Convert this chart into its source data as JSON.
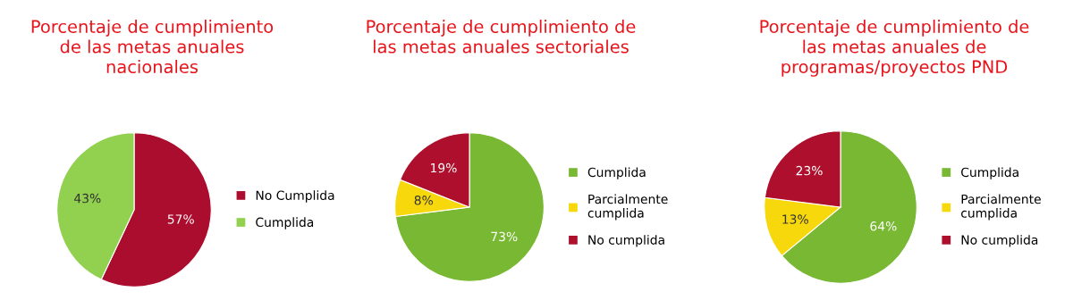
{
  "chart_data": [
    {
      "type": "pie",
      "title": "Porcentaje de cumplimiento\nde las metas anuales\nnacionales",
      "categories": [
        "No Cumplida",
        "Cumplida"
      ],
      "values": [
        57,
        43
      ],
      "colors": [
        "#ab0d2e",
        "#92d050"
      ],
      "value_labels": [
        "57%",
        "43%"
      ],
      "legend": "right"
    },
    {
      "type": "pie",
      "title": "Porcentaje de cumplimiento de\nlas metas anuales sectoriales",
      "categories": [
        "Cumplida",
        "Parcialmente\ncumplida",
        "No cumplida"
      ],
      "values": [
        73,
        8,
        19
      ],
      "colors": [
        "#78b833",
        "#f7d80c",
        "#ad0f2c"
      ],
      "value_labels": [
        "73%",
        "8%",
        "19%"
      ],
      "legend": "right"
    },
    {
      "type": "pie",
      "title": "Porcentaje de cumplimiento de\nlas metas anuales de\nprogramas/proyectos PND",
      "categories": [
        "Cumplida",
        "Parcialmente\ncumplida",
        "No cumplida"
      ],
      "values": [
        64,
        13,
        23
      ],
      "colors": [
        "#78b833",
        "#f7d80c",
        "#ad0f2c"
      ],
      "value_labels": [
        "64%",
        "13%",
        "23%"
      ],
      "legend": "right"
    }
  ]
}
